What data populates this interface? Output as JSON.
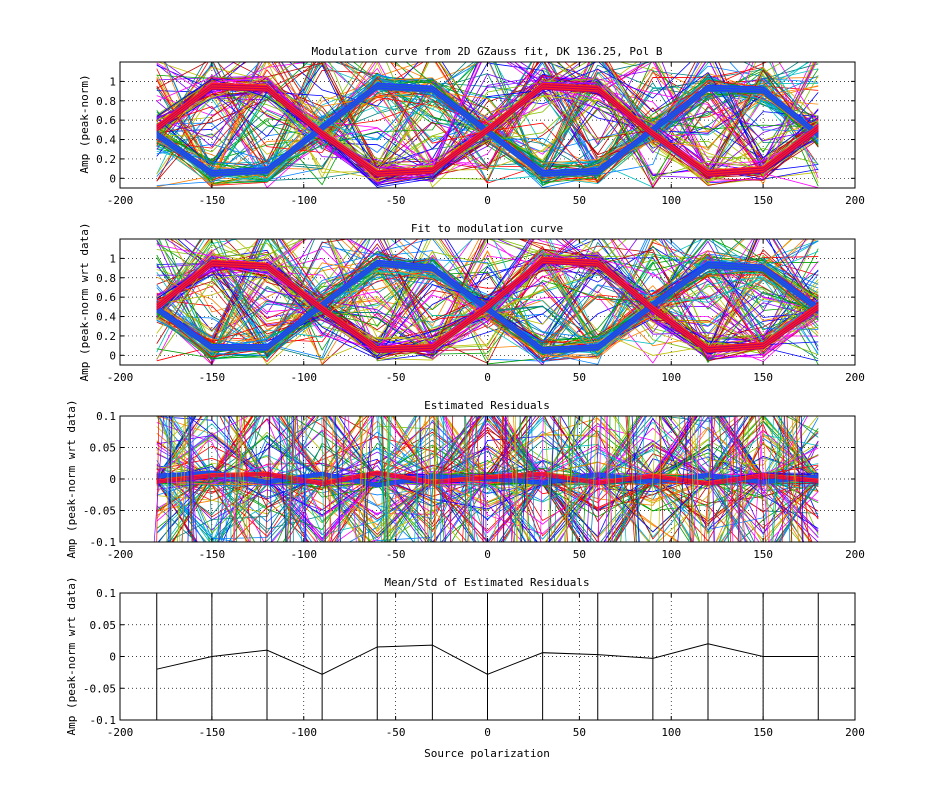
{
  "chart_data": [
    {
      "type": "line",
      "title": "Modulation curve from 2D GZauss fit, DK 136.25, Pol B",
      "xlabel": "",
      "ylabel": "Amp (peak-norm)",
      "xlim": [
        -200,
        200
      ],
      "ylim": [
        -0.1,
        1.2
      ],
      "xticks": [
        "-200",
        "-150",
        "-100",
        "-50",
        "0",
        "50",
        "100",
        "150",
        "200"
      ],
      "yticks": [
        "0",
        "0.2",
        "0.4",
        "0.6",
        "0.8",
        "1"
      ],
      "ytick_values": [
        0,
        0.2,
        0.4,
        0.6,
        0.8,
        1
      ],
      "grid": true,
      "x": [
        -180,
        -150,
        -120,
        -90,
        -60,
        -30,
        0,
        30,
        60,
        90,
        120,
        150,
        180
      ],
      "series": [
        {
          "values": [
            0.45,
            0.05,
            0.08,
            0.52,
            0.95,
            0.92,
            0.48,
            0.05,
            0.07,
            0.5,
            0.93,
            0.91,
            0.45
          ],
          "color": "#1f3fff"
        },
        {
          "values": [
            0.52,
            0.95,
            0.93,
            0.46,
            0.05,
            0.08,
            0.5,
            0.95,
            0.92,
            0.46,
            0.05,
            0.09,
            0.52
          ],
          "color": "#ff2020"
        }
      ]
    },
    {
      "type": "line",
      "title": "Fit to modulation curve",
      "xlabel": "",
      "ylabel": "Amp (peak-norm wrt data)",
      "xlim": [
        -200,
        200
      ],
      "ylim": [
        -0.1,
        1.2
      ],
      "xticks": [
        "-200",
        "-150",
        "-100",
        "-50",
        "0",
        "50",
        "100",
        "150",
        "200"
      ],
      "yticks": [
        "0",
        "0.2",
        "0.4",
        "0.6",
        "0.8",
        "1"
      ],
      "ytick_values": [
        0,
        0.2,
        0.4,
        0.6,
        0.8,
        1
      ],
      "grid": true,
      "x": [
        -180,
        -150,
        -120,
        -90,
        -60,
        -30,
        0,
        30,
        60,
        90,
        120,
        150,
        180
      ],
      "series": [
        {
          "values": [
            0.48,
            0.08,
            0.08,
            0.52,
            0.95,
            0.9,
            0.48,
            0.05,
            0.08,
            0.52,
            0.93,
            0.9,
            0.48
          ],
          "color": "#1f3fff"
        },
        {
          "values": [
            0.5,
            0.95,
            0.92,
            0.48,
            0.06,
            0.08,
            0.5,
            0.98,
            0.95,
            0.48,
            0.06,
            0.1,
            0.5
          ],
          "color": "#ff2020"
        }
      ]
    },
    {
      "type": "line",
      "title": "Estimated Residuals",
      "xlabel": "",
      "ylabel": "Amp (peak-norm wrt data)",
      "xlim": [
        -200,
        200
      ],
      "ylim": [
        -0.1,
        0.1
      ],
      "xticks": [
        "-200",
        "-150",
        "-100",
        "-50",
        "0",
        "50",
        "100",
        "150",
        "200"
      ],
      "yticks": [
        "-0.1",
        "-0.05",
        "0",
        "0.05",
        "0.1"
      ],
      "ytick_values": [
        -0.1,
        -0.05,
        0,
        0.05,
        0.1
      ],
      "grid": true,
      "x": [
        -180,
        -150,
        -120,
        -90,
        -60,
        -30,
        0,
        30,
        60,
        90,
        120,
        150,
        180
      ],
      "series": [
        {
          "values": [
            0.005,
            0.01,
            -0.005,
            0.008,
            -0.01,
            0.004,
            0.0,
            -0.006,
            0.007,
            -0.004,
            0.006,
            -0.005,
            0.004
          ],
          "color": "#1f3fff"
        },
        {
          "values": [
            -0.004,
            0.006,
            0.008,
            -0.007,
            0.01,
            -0.005,
            0.003,
            0.008,
            -0.006,
            0.005,
            -0.007,
            0.006,
            -0.003
          ],
          "color": "#ff2020"
        }
      ]
    },
    {
      "type": "line",
      "title": "Mean/Std of Estimated Residuals",
      "xlabel": "Source polarization",
      "ylabel": "Amp (peak-norm wrt data)",
      "xlim": [
        -200,
        200
      ],
      "ylim": [
        -0.1,
        0.1
      ],
      "xticks": [
        "-200",
        "-150",
        "-100",
        "-50",
        "0",
        "50",
        "100",
        "150",
        "200"
      ],
      "yticks": [
        "-0.1",
        "-0.05",
        "0",
        "0.05",
        "0.1"
      ],
      "ytick_values": [
        -0.1,
        -0.05,
        0,
        0.05,
        0.1
      ],
      "grid": true,
      "x": [
        -180,
        -150,
        -120,
        -90,
        -60,
        -50,
        -30,
        0,
        30,
        60,
        90,
        120,
        150,
        180
      ],
      "series": [
        {
          "values": [
            -0.02,
            0.0,
            0.01,
            -0.028,
            0.015,
            0.016,
            0.018,
            -0.028,
            0.006,
            0.003,
            -0.003,
            0.02,
            0.0,
            0.0
          ],
          "color": "#000000"
        }
      ],
      "errorbar_x": [
        -180,
        -150,
        -120,
        -90,
        -60,
        -30,
        0,
        30,
        60,
        90,
        120,
        150,
        180
      ]
    }
  ]
}
